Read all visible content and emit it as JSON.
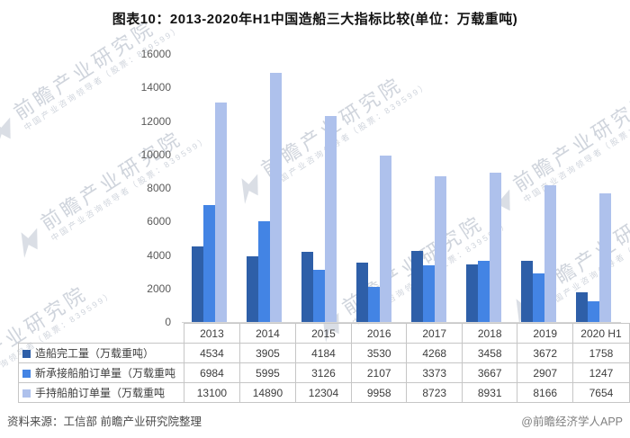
{
  "title": "图表10：2013-2020年H1中国造船三大指标比较(单位：万载重吨)",
  "source_note": "资料来源：工信部 前瞻产业研究院整理",
  "credit": "@前瞻经济学人APP",
  "watermark": {
    "main": "前瞻产业研究院",
    "sub": "中国产业咨询领导者（股票：839599）"
  },
  "colors": {
    "series1": "#2e5fa8",
    "series2": "#4384e4",
    "series3": "#aec1ec",
    "axis_line": "#d6d6d6",
    "table_border": "#c6c6c6"
  },
  "chart_data": {
    "type": "bar",
    "title": "图表10：2013-2020年H1中国造船三大指标比较(单位：万载重吨)",
    "categories": [
      "2013",
      "2014",
      "2015",
      "2016",
      "2017",
      "2018",
      "2019",
      "2020 H1"
    ],
    "series": [
      {
        "name": "造船完工量（万载重吨）",
        "color": "#2e5fa8",
        "values": [
          4534,
          3905,
          4184,
          3530,
          4268,
          3458,
          3672,
          1758
        ]
      },
      {
        "name": "新承接船舶订单量（万载重吨",
        "color": "#4384e4",
        "values": [
          6984,
          5995,
          3126,
          2107,
          3373,
          3667,
          2907,
          1247
        ]
      },
      {
        "name": "手持船舶订单量（万载重吨",
        "color": "#aec1ec",
        "values": [
          13100,
          14890,
          12304,
          9958,
          8723,
          8931,
          8166,
          7654
        ]
      }
    ],
    "xlabel": "",
    "ylabel": "",
    "ylim": [
      0,
      16000
    ],
    "yticks": [
      0,
      2000,
      4000,
      6000,
      8000,
      10000,
      12000,
      14000,
      16000
    ],
    "grid": false,
    "legend_position": "data-table-left-column"
  }
}
